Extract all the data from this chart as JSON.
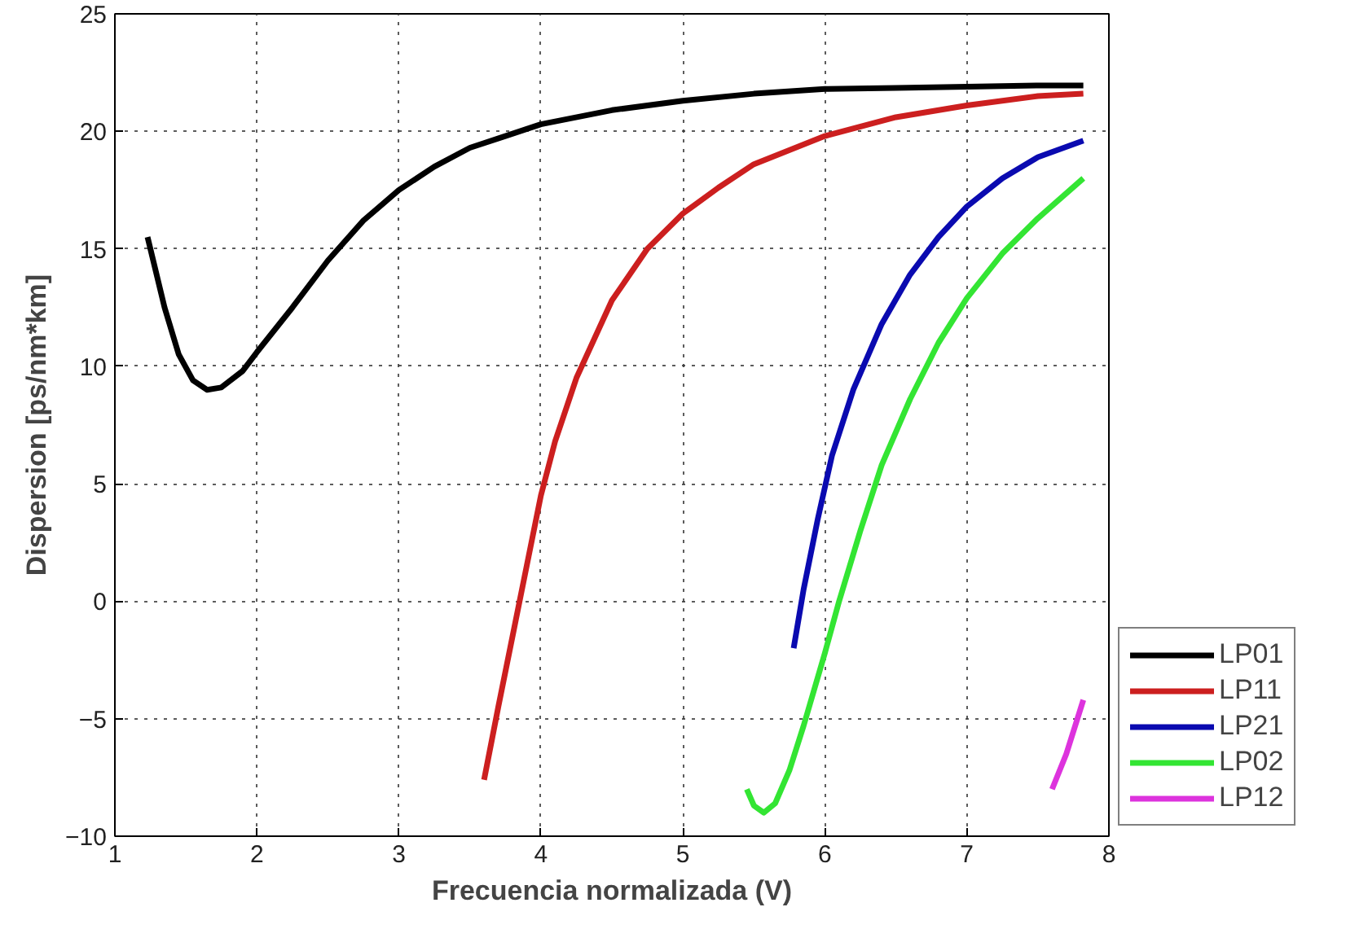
{
  "chart_data": {
    "type": "line",
    "xlabel": "Frecuencia normalizada (V)",
    "ylabel": "Dispersion [ps/nm*km]",
    "xlim": [
      1,
      8
    ],
    "ylim": [
      -10,
      25
    ],
    "xticks": [
      1,
      2,
      3,
      4,
      5,
      6,
      7,
      8
    ],
    "yticks": [
      -10,
      -5,
      0,
      5,
      10,
      15,
      20,
      25
    ],
    "grid": true,
    "legend": "bottom right",
    "marker": "none",
    "line_style": "solid",
    "series": [
      {
        "name": "LP01",
        "color": "#000000",
        "x": [
          1.23,
          1.35,
          1.45,
          1.55,
          1.65,
          1.75,
          1.9,
          2.0,
          2.25,
          2.5,
          2.75,
          3.0,
          3.25,
          3.5,
          3.75,
          4.0,
          4.5,
          5.0,
          5.5,
          6.0,
          6.5,
          7.0,
          7.5,
          7.82
        ],
        "values": [
          15.5,
          12.5,
          10.5,
          9.4,
          9.0,
          9.1,
          9.8,
          10.6,
          12.5,
          14.5,
          16.2,
          17.5,
          18.5,
          19.3,
          19.8,
          20.3,
          20.9,
          21.3,
          21.6,
          21.8,
          21.85,
          21.9,
          21.95,
          21.95
        ]
      },
      {
        "name": "LP11",
        "color": "#cc1f1f",
        "x": [
          3.6,
          3.7,
          3.8,
          3.9,
          4.0,
          4.1,
          4.25,
          4.5,
          4.75,
          5.0,
          5.25,
          5.5,
          6.0,
          6.5,
          7.0,
          7.5,
          7.82
        ],
        "values": [
          -7.6,
          -4.5,
          -1.5,
          1.5,
          4.5,
          6.8,
          9.5,
          12.8,
          15.0,
          16.5,
          17.6,
          18.6,
          19.8,
          20.6,
          21.1,
          21.5,
          21.6
        ]
      },
      {
        "name": "LP21",
        "color": "#0a0ab0",
        "x": [
          5.78,
          5.85,
          5.95,
          6.05,
          6.2,
          6.4,
          6.6,
          6.8,
          7.0,
          7.25,
          7.5,
          7.82
        ],
        "values": [
          -2,
          0.5,
          3.5,
          6.2,
          9.0,
          11.8,
          13.9,
          15.5,
          16.8,
          18.0,
          18.9,
          19.6
        ]
      },
      {
        "name": "LP02",
        "color": "#33e533",
        "x": [
          5.45,
          5.5,
          5.57,
          5.65,
          5.75,
          5.85,
          6.0,
          6.1,
          6.25,
          6.4,
          6.6,
          6.8,
          7.0,
          7.25,
          7.5,
          7.82
        ],
        "values": [
          -8,
          -8.7,
          -9,
          -8.6,
          -7.2,
          -5.3,
          -2.2,
          0,
          3.0,
          5.8,
          8.6,
          11.0,
          12.9,
          14.8,
          16.3,
          18.0
        ]
      },
      {
        "name": "LP12",
        "color": "#dd33dd",
        "x": [
          7.6,
          7.7,
          7.82
        ],
        "values": [
          -8,
          -6.5,
          -4.2
        ]
      }
    ]
  }
}
